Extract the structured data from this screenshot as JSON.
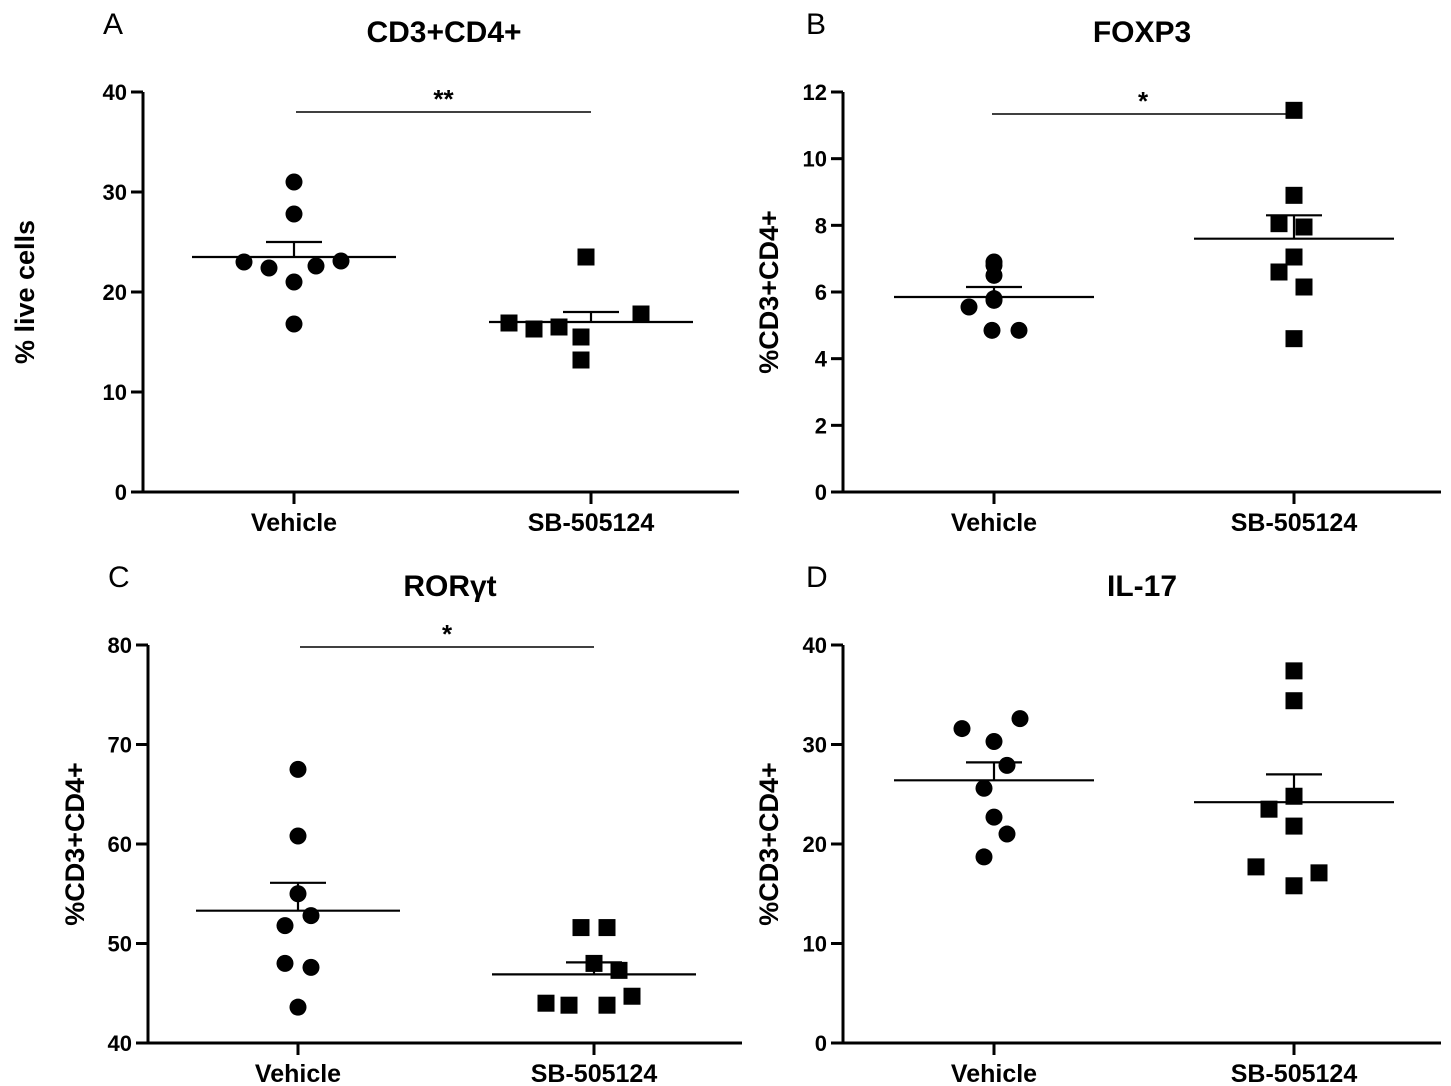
{
  "chart_data": [
    {
      "type": "scatter",
      "panel": "A",
      "title": "CD3+CD4+",
      "ylabel": "% live cells",
      "ylim": [
        0,
        40
      ],
      "yticks": [
        0,
        10,
        20,
        30,
        40
      ],
      "categories": [
        "Vehicle",
        "SB-505124"
      ],
      "series": [
        {
          "marker": "circle",
          "values": [
            31,
            27.8,
            23,
            22.4,
            22.6,
            23.1,
            21,
            16.8
          ],
          "mean": 23.5,
          "sem": 1.5
        },
        {
          "marker": "square",
          "values": [
            23.5,
            16.9,
            16.3,
            16.5,
            15.5,
            17.8,
            13.2
          ],
          "mean": 17,
          "sem": 1
        }
      ],
      "significance": "**"
    },
    {
      "type": "scatter",
      "panel": "B",
      "title": "FOXP3",
      "ylabel": "%CD3+CD4+",
      "ylim": [
        0,
        12
      ],
      "yticks": [
        0,
        2,
        4,
        6,
        8,
        10,
        12
      ],
      "categories": [
        "Vehicle",
        "SB-505124"
      ],
      "series": [
        {
          "marker": "circle",
          "values": [
            6.9,
            6.5,
            6.8,
            5.55,
            5.75,
            5.8,
            4.85,
            4.85
          ],
          "mean": 5.85,
          "sem": 0.3
        },
        {
          "marker": "square",
          "values": [
            11.45,
            8.9,
            8.05,
            7.95,
            7.05,
            6.6,
            6.15,
            4.6
          ],
          "mean": 7.6,
          "sem": 0.7
        }
      ],
      "significance": "*"
    },
    {
      "type": "scatter",
      "panel": "C",
      "title": "RORγt",
      "ylabel": "%CD3+CD4+",
      "ylim": [
        40,
        80
      ],
      "yticks": [
        40,
        50,
        60,
        70,
        80
      ],
      "categories": [
        "Vehicle",
        "SB-505124"
      ],
      "series": [
        {
          "marker": "circle",
          "values": [
            67.5,
            60.8,
            55,
            52.8,
            51.8,
            48,
            47.6,
            43.6
          ],
          "mean": 53.3,
          "sem": 2.8
        },
        {
          "marker": "square",
          "values": [
            51.6,
            51.6,
            48,
            47.3,
            44,
            43.8,
            43.8,
            44.7
          ],
          "mean": 46.9,
          "sem": 1.2
        }
      ],
      "significance": "*"
    },
    {
      "type": "scatter",
      "panel": "D",
      "title": "IL-17",
      "ylabel": "%CD3+CD4+",
      "ylim": [
        0,
        40
      ],
      "yticks": [
        0,
        10,
        20,
        30,
        40
      ],
      "categories": [
        "Vehicle",
        "SB-505124"
      ],
      "series": [
        {
          "marker": "circle",
          "values": [
            31.6,
            30.3,
            32.6,
            27.9,
            25.6,
            22.7,
            21,
            18.7
          ],
          "mean": 26.4,
          "sem": 1.8
        },
        {
          "marker": "square",
          "values": [
            37.4,
            34.4,
            24.8,
            23.5,
            21.8,
            17.7,
            15.8,
            17.1
          ],
          "mean": 24.2,
          "sem": 2.8
        }
      ],
      "significance": ""
    }
  ]
}
